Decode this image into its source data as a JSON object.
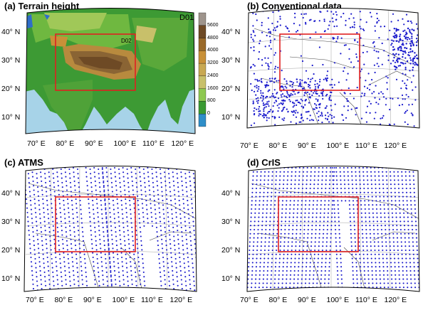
{
  "figure": {
    "panels": [
      {
        "id": "a",
        "title": "(a) Terrain height",
        "domain_labels": [
          "D01",
          "D02"
        ]
      },
      {
        "id": "b",
        "title": "(b) Conventional data"
      },
      {
        "id": "c",
        "title": "(c) ATMS"
      },
      {
        "id": "d",
        "title": "(d) CrIS"
      }
    ],
    "lon_ticks": [
      "70° E",
      "80° E",
      "90° E",
      "100° E",
      "110° E",
      "120° E"
    ],
    "lat_ticks": [
      "40° N",
      "30° N",
      "20° N",
      "10° N"
    ],
    "colorbar": {
      "labels": [
        "5600",
        "4800",
        "4000",
        "3200",
        "2400",
        "1600",
        "800",
        "0"
      ],
      "colors": [
        "#9e948c",
        "#6e4a25",
        "#9a6a2a",
        "#c89038",
        "#c8a852",
        "#c8c06a",
        "#8ec850",
        "#3a9a32",
        "#2f8ec8"
      ]
    },
    "colors": {
      "ocean": "#a7d3e8",
      "lowland": "#3d9a34",
      "plateau": "#8a6434",
      "observation_dot": "#1a1acc",
      "d02_box": "#e02020"
    }
  }
}
